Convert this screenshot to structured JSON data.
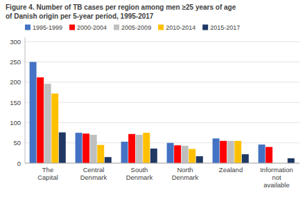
{
  "chart_data": {
    "type": "bar",
    "title": "Figure 4. Number of TB cases per region among men ≥25 years of age\nof Danish origin per 5-year period, 1995-2017",
    "categories": [
      "The\nCapital",
      "Central\nDenmark",
      "South\nDenmark",
      "North\nDenmark",
      "Zealand",
      "Information\nnot\navailable"
    ],
    "series": [
      {
        "name": "1995-1999",
        "color": "#4472C4",
        "values": [
          250,
          75,
          53,
          50,
          61,
          46
        ]
      },
      {
        "name": "2000-2004",
        "color": "#FF0000",
        "values": [
          212,
          73,
          72,
          44,
          55,
          40
        ]
      },
      {
        "name": "2005-2009",
        "color": "#BFBFBF",
        "values": [
          196,
          70,
          70,
          43,
          55,
          0
        ]
      },
      {
        "name": "2010-2014",
        "color": "#FFC000",
        "values": [
          172,
          45,
          75,
          35,
          55,
          0
        ]
      },
      {
        "name": "2015-2017",
        "color": "#1F3864",
        "values": [
          76,
          15,
          36,
          17,
          22,
          12
        ]
      }
    ],
    "ylim": [
      0,
      310
    ],
    "yticks": [
      0,
      50,
      100,
      150,
      200,
      250,
      300
    ],
    "grid": true,
    "legend": "top left"
  }
}
